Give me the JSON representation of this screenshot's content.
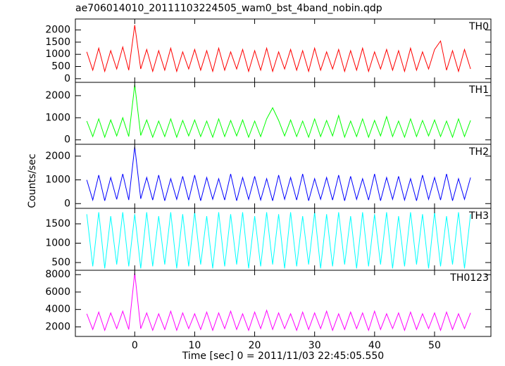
{
  "title": "ae706014010_20111103224505_wam0_bst_4band_nobin.qdp",
  "ylabel": "Counts/sec",
  "chart_data": [
    {
      "type": "line",
      "label": "TH0",
      "color": "#ff0000",
      "ylim": [
        -150,
        2450
      ],
      "yticks": [
        0,
        500,
        1000,
        1500,
        2000
      ],
      "x": [
        -8,
        -7,
        -6,
        -5,
        -4,
        -3,
        -2,
        -1,
        0,
        1,
        2,
        3,
        4,
        5,
        6,
        7,
        8,
        9,
        10,
        11,
        12,
        13,
        14,
        15,
        16,
        17,
        18,
        19,
        20,
        21,
        22,
        23,
        24,
        25,
        26,
        27,
        28,
        29,
        30,
        31,
        32,
        33,
        34,
        35,
        36,
        37,
        38,
        39,
        40,
        41,
        42,
        43,
        44,
        45,
        46,
        47,
        48,
        49,
        50,
        51,
        52,
        53,
        54,
        55,
        56
      ],
      "values": [
        1100,
        350,
        1250,
        300,
        1150,
        400,
        1300,
        350,
        2200,
        400,
        1200,
        300,
        1150,
        350,
        1250,
        300,
        1100,
        400,
        1200,
        350,
        1150,
        300,
        1250,
        350,
        1100,
        400,
        1200,
        300,
        1150,
        350,
        1250,
        300,
        1100,
        400,
        1200,
        350,
        1150,
        300,
        1250,
        350,
        1100,
        400,
        1200,
        300,
        1150,
        350,
        1250,
        300,
        1100,
        400,
        1200,
        350,
        1150,
        300,
        1250,
        350,
        1100,
        400,
        1200,
        1550,
        350,
        1150,
        300,
        1200,
        400
      ]
    },
    {
      "type": "line",
      "label": "TH1",
      "color": "#00ff00",
      "ylim": [
        -200,
        2600
      ],
      "yticks": [
        0,
        1000,
        2000
      ],
      "x": [
        -8,
        -7,
        -6,
        -5,
        -4,
        -3,
        -2,
        -1,
        0,
        1,
        2,
        3,
        4,
        5,
        6,
        7,
        8,
        9,
        10,
        11,
        12,
        13,
        14,
        15,
        16,
        17,
        18,
        19,
        20,
        21,
        22,
        23,
        24,
        25,
        26,
        27,
        28,
        29,
        30,
        31,
        32,
        33,
        34,
        35,
        36,
        37,
        38,
        39,
        40,
        41,
        42,
        43,
        44,
        45,
        46,
        47,
        48,
        49,
        50,
        51,
        52,
        53,
        54,
        55,
        56
      ],
      "values": [
        850,
        150,
        950,
        120,
        900,
        180,
        1000,
        150,
        2500,
        200,
        900,
        120,
        850,
        150,
        950,
        120,
        880,
        180,
        900,
        150,
        850,
        120,
        950,
        150,
        880,
        180,
        900,
        120,
        850,
        150,
        950,
        1450,
        880,
        180,
        900,
        150,
        850,
        120,
        950,
        150,
        880,
        180,
        1100,
        120,
        850,
        150,
        950,
        120,
        880,
        180,
        1050,
        150,
        850,
        120,
        950,
        150,
        880,
        180,
        900,
        150,
        850,
        120,
        950,
        150,
        880
      ]
    },
    {
      "type": "line",
      "label": "TH2",
      "color": "#0000ff",
      "ylim": [
        -200,
        2500
      ],
      "yticks": [
        0,
        1000,
        2000
      ],
      "x": [
        -8,
        -7,
        -6,
        -5,
        -4,
        -3,
        -2,
        -1,
        0,
        1,
        2,
        3,
        4,
        5,
        6,
        7,
        8,
        9,
        10,
        11,
        12,
        13,
        14,
        15,
        16,
        17,
        18,
        19,
        20,
        21,
        22,
        23,
        24,
        25,
        26,
        27,
        28,
        29,
        30,
        31,
        32,
        33,
        34,
        35,
        36,
        37,
        38,
        39,
        40,
        41,
        42,
        43,
        44,
        45,
        46,
        47,
        48,
        49,
        50,
        51,
        52,
        53,
        54,
        55,
        56
      ],
      "values": [
        1000,
        150,
        1200,
        120,
        1100,
        180,
        1250,
        150,
        2400,
        200,
        1100,
        150,
        1200,
        120,
        1050,
        180,
        1150,
        150,
        1200,
        120,
        1100,
        180,
        1050,
        150,
        1250,
        120,
        1100,
        180,
        1150,
        150,
        1050,
        120,
        1200,
        180,
        1100,
        150,
        1250,
        120,
        1050,
        180,
        1100,
        150,
        1200,
        120,
        1150,
        180,
        1050,
        150,
        1250,
        120,
        1100,
        180,
        1150,
        150,
        1050,
        120,
        1200,
        180,
        1100,
        150,
        1250,
        120,
        1050,
        180,
        1100
      ]
    },
    {
      "type": "line",
      "label": "TH3",
      "color": "#00ffff",
      "ylim": [
        300,
        1900
      ],
      "yticks": [
        500,
        1000,
        1500
      ],
      "x": [
        -8,
        -7,
        -6,
        -5,
        -4,
        -3,
        -2,
        -1,
        0,
        1,
        2,
        3,
        4,
        5,
        6,
        7,
        8,
        9,
        10,
        11,
        12,
        13,
        14,
        15,
        16,
        17,
        18,
        19,
        20,
        21,
        22,
        23,
        24,
        25,
        26,
        27,
        28,
        29,
        30,
        31,
        32,
        33,
        34,
        35,
        36,
        37,
        38,
        39,
        40,
        41,
        42,
        43,
        44,
        45,
        46,
        47,
        48,
        49,
        50,
        51,
        52,
        53,
        54,
        55,
        56
      ],
      "values": [
        1750,
        400,
        1800,
        350,
        1700,
        450,
        1800,
        400,
        1750,
        350,
        1800,
        400,
        1700,
        450,
        1800,
        350,
        1750,
        400,
        1800,
        450,
        1700,
        350,
        1800,
        400,
        1750,
        450,
        1800,
        350,
        1700,
        400,
        1800,
        450,
        1750,
        350,
        1800,
        400,
        1700,
        450,
        1800,
        350,
        1750,
        400,
        1800,
        450,
        1700,
        350,
        1800,
        400,
        1750,
        450,
        1800,
        350,
        1700,
        400,
        1800,
        450,
        1750,
        350,
        1800,
        400,
        1700,
        450,
        1800,
        350,
        1750
      ]
    },
    {
      "type": "line",
      "label": "TH0123",
      "color": "#ff00ff",
      "ylim": [
        900,
        8500
      ],
      "yticks": [
        2000,
        4000,
        6000,
        8000
      ],
      "xlabel": "Time [sec] 0 = 2011/11/03 22:45:05.550",
      "xlim": [
        -9.9,
        59.4
      ],
      "xticks": [
        0,
        10,
        20,
        30,
        40,
        50
      ],
      "x": [
        -8,
        -7,
        -6,
        -5,
        -4,
        -3,
        -2,
        -1,
        0,
        1,
        2,
        3,
        4,
        5,
        6,
        7,
        8,
        9,
        10,
        11,
        12,
        13,
        14,
        15,
        16,
        17,
        18,
        19,
        20,
        21,
        22,
        23,
        24,
        25,
        26,
        27,
        28,
        29,
        30,
        31,
        32,
        33,
        34,
        35,
        36,
        37,
        38,
        39,
        40,
        41,
        42,
        43,
        44,
        45,
        46,
        47,
        48,
        49,
        50,
        51,
        52,
        53,
        54,
        55,
        56
      ],
      "values": [
        3500,
        1700,
        3700,
        1600,
        3600,
        1800,
        3800,
        1700,
        8200,
        1800,
        3600,
        1600,
        3500,
        1700,
        3800,
        1600,
        3600,
        1800,
        3500,
        1700,
        3700,
        1600,
        3600,
        1800,
        3800,
        1700,
        3500,
        1600,
        3700,
        1800,
        3900,
        1700,
        3600,
        1800,
        3500,
        1600,
        3700,
        1700,
        3600,
        1800,
        3800,
        1600,
        3500,
        1700,
        3700,
        1800,
        3600,
        1600,
        3800,
        1700,
        3500,
        1800,
        3600,
        1600,
        3700,
        1700,
        3500,
        1800,
        3600,
        1600,
        3700,
        1700,
        3500,
        1800,
        3600
      ]
    }
  ]
}
